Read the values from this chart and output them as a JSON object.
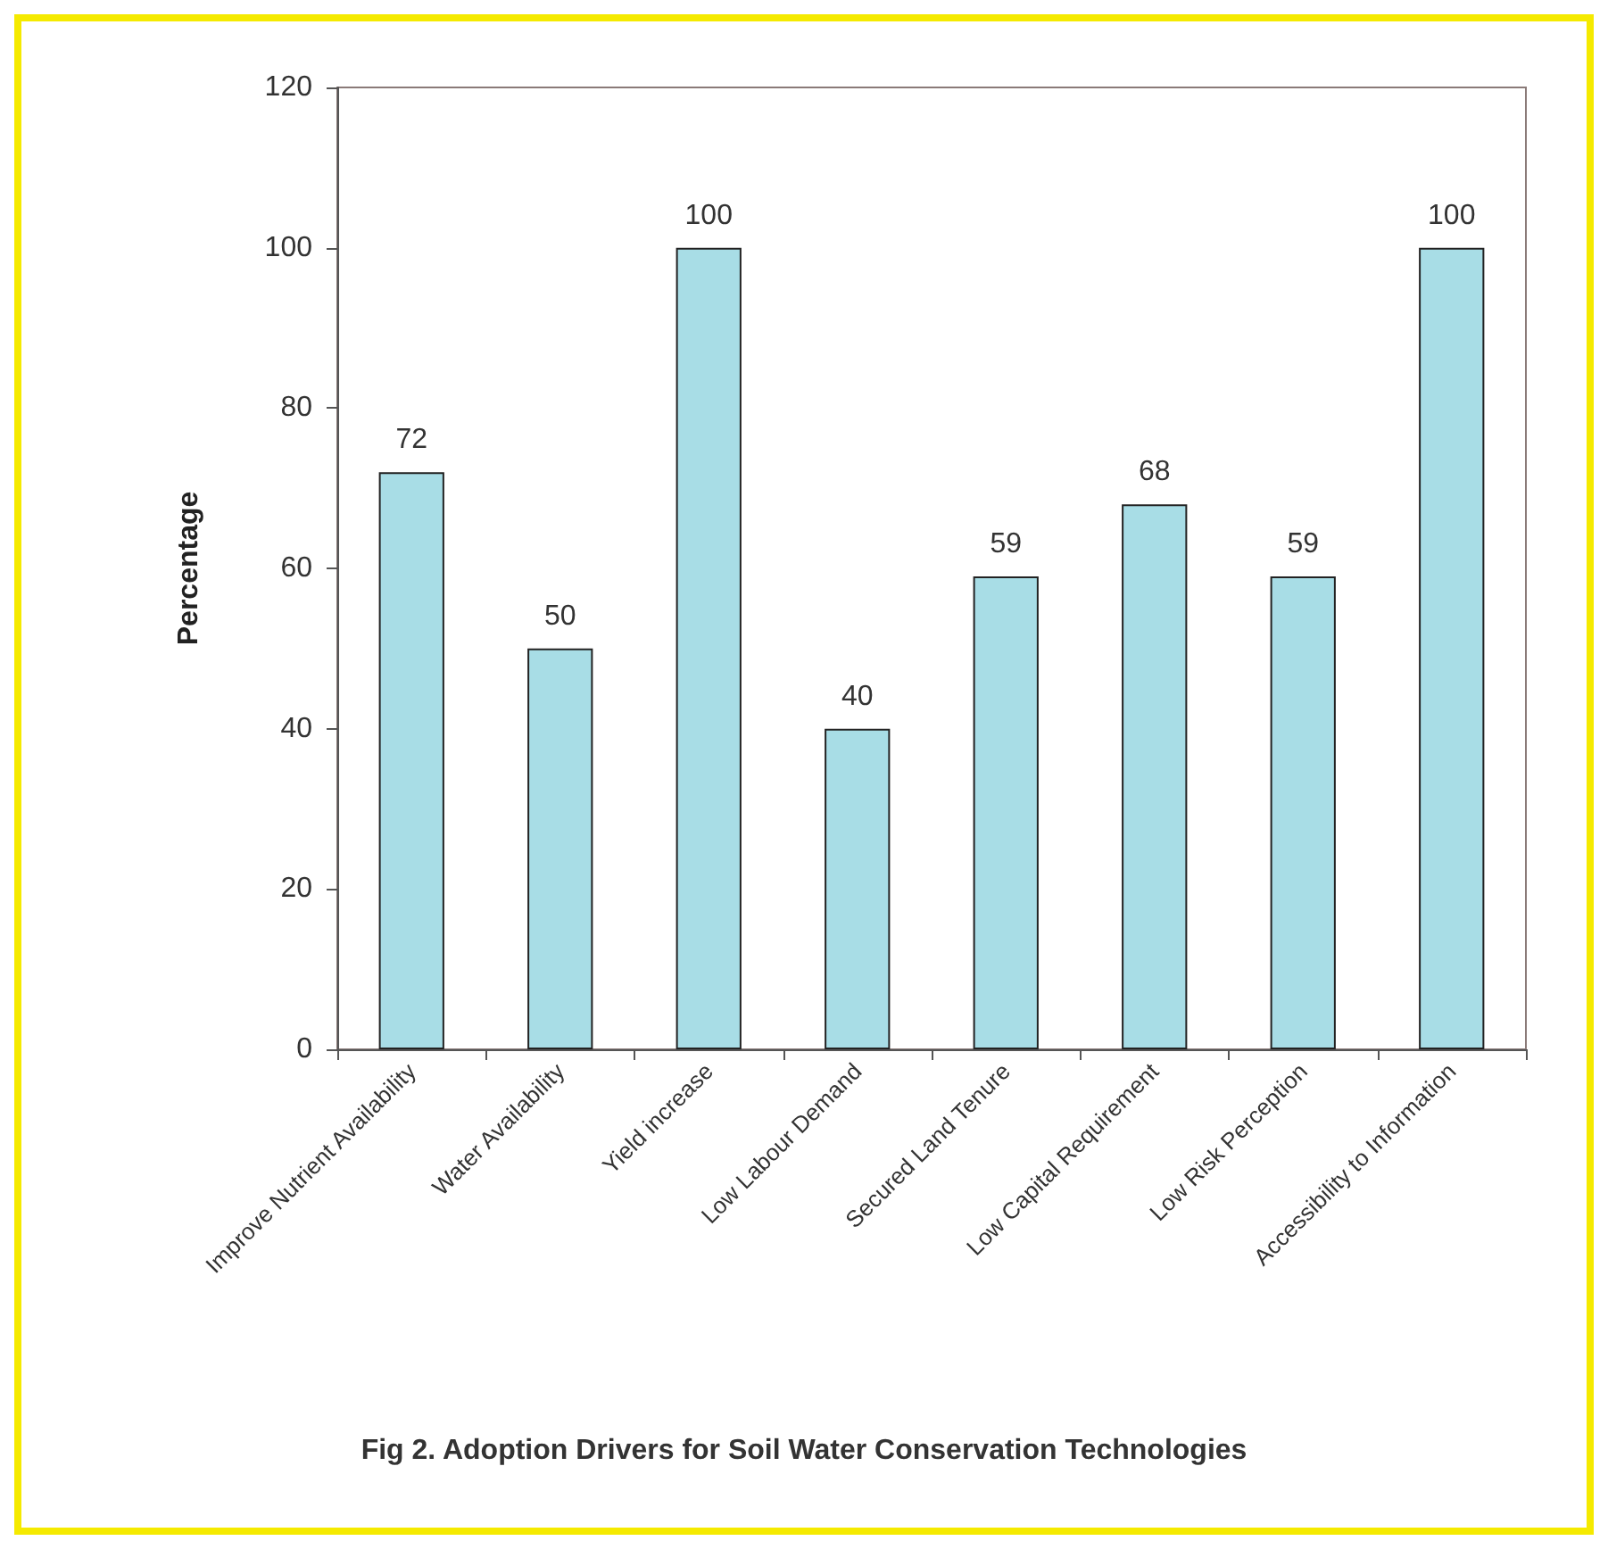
{
  "chart_data": {
    "type": "bar",
    "title": "Fig 2. Adoption Drivers for Soil Water Conservation Technologies",
    "categories": [
      "Improve Nutrient Availability",
      "Water Availability",
      "Yield increase",
      "Low Labour Demand",
      "Secured Land Tenure",
      "Low Capital Requirement",
      "Low Risk Perception",
      "Accessibility to Information"
    ],
    "values": [
      72,
      50,
      100,
      40,
      59,
      68,
      59,
      100
    ],
    "color": "#a8dde6",
    "ylabel": "Percentage",
    "ylim": [
      0,
      120
    ],
    "yticks": [
      0,
      20,
      40,
      60,
      80,
      100,
      120
    ],
    "data_labels": true
  }
}
